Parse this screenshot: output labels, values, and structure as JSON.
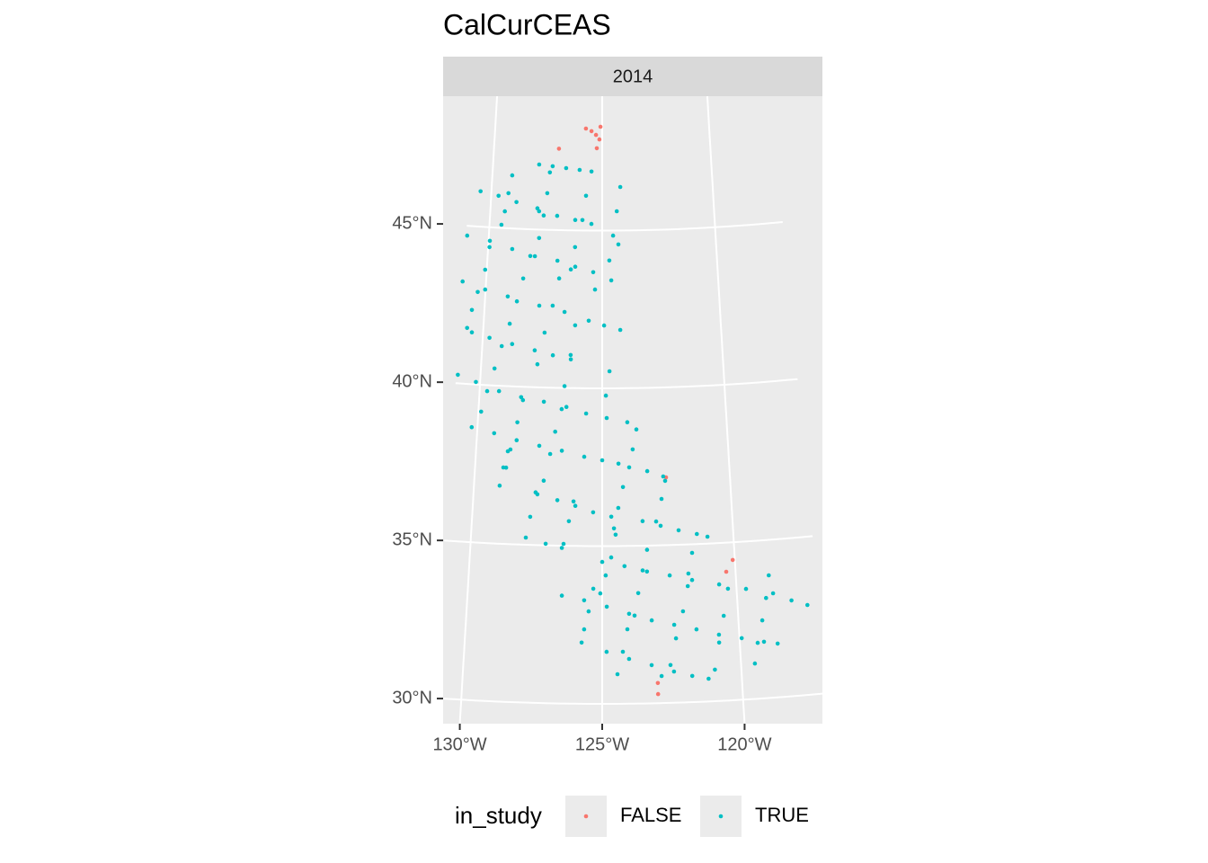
{
  "chart_data": {
    "type": "scatter",
    "title": "CalCurCEAS",
    "facet": "2014",
    "legend_title": "in_study",
    "xlim": [
      -131,
      -117
    ],
    "ylim": [
      29,
      50
    ],
    "xticks": [
      {
        "value": -130,
        "label": "130°W"
      },
      {
        "value": -125,
        "label": "125°W"
      },
      {
        "value": -120,
        "label": "120°W"
      }
    ],
    "yticks": [
      {
        "value": 30,
        "label": "30°N"
      },
      {
        "value": 35,
        "label": "35°N"
      },
      {
        "value": 40,
        "label": "40°N"
      },
      {
        "value": 45,
        "label": "45°N"
      }
    ],
    "grid": true,
    "series": [
      {
        "name": "FALSE",
        "color": "#F8766D",
        "x": [
          -125.76,
          -125.5,
          -125.29,
          -125.08,
          -125.13,
          -125.25,
          -127.0,
          -122.5,
          -120.35,
          -120.08,
          -123.01,
          -123.01
        ],
        "values": [
          48.23,
          48.15,
          48.03,
          48.29,
          47.89,
          47.61,
          47.58,
          37.15,
          34.08,
          34.44,
          30.64,
          30.29
        ]
      },
      {
        "name": "TRUE",
        "color": "#00BFC4",
        "x": [
          -127.89,
          -127.27,
          -126.65,
          -126.03,
          -125.49,
          -129.1,
          -129.23,
          -129.35,
          -129.47,
          -127.39,
          -127.48,
          -127.61,
          -127.78,
          -130.49,
          -129.67,
          -128.85,
          -127.9,
          -127.82,
          -127.01,
          -126.2,
          -125.48,
          -125.73,
          -125.88,
          -126.19,
          -126.36,
          -124.18,
          -124.35,
          -124.52,
          -130.95,
          -129.94,
          -128.94,
          -127.94,
          -126.95,
          -126.17,
          -125.39,
          -124.61,
          -129.94,
          -130.07,
          -130.33,
          -130.53,
          -130.68,
          -128.14,
          -128.41,
          -128.64,
          -128.9,
          -131.01,
          -130.02,
          -129.04,
          -127.68,
          -126.6,
          -126.86,
          -127.11,
          -127.42,
          -127.68,
          -124.29,
          -124.69,
          -125.31,
          -130.47,
          -129.72,
          -128.76,
          -127.81,
          -127.05,
          -126.3,
          -125.57,
          -124.92,
          -124.24,
          -129.19,
          -129.44,
          -129.69,
          -129.89,
          -126.14,
          -126.31,
          -126.54,
          -130.93,
          -130.17,
          -129.21,
          -128.3,
          -127.37,
          -126.45,
          -124.7,
          -124.85,
          -125.65,
          -124.82,
          -123.99,
          -128.22,
          -128.41,
          -128.64,
          -128.78,
          -126.64,
          -126.88,
          -127.06,
          -127.29,
          -130.23,
          -129.32,
          -128.41,
          -127.5,
          -126.6,
          -125.71,
          -125.0,
          -124.36,
          -128.74,
          -128.89,
          -129.0,
          -123.63,
          -123.79,
          -123.94,
          -123.23,
          -122.61,
          -122.54,
          -122.7,
          -122.93,
          -127.59,
          -127.77,
          -127.91,
          -127.15,
          -126.53,
          -126.11,
          -126.28,
          -126.47,
          -127.52,
          -126.74,
          -126.04,
          -125.35,
          -124.65,
          -124.19,
          -124.38,
          -124.55,
          -123.45,
          -122.76,
          -122.08,
          -121.39,
          -120.99,
          -121.6,
          -121.77,
          -124.49,
          -124.66,
          -124.87,
          -125.07,
          -125.0,
          -124.16,
          -123.32,
          -122.47,
          -121.64,
          -120.64,
          -119.65,
          -118.66,
          -123.3,
          -123.48,
          -123.66,
          -123.81,
          -126.5,
          -125.67,
          -124.83,
          -124.01,
          -123.18,
          -122.36,
          -121.55,
          -120.74,
          -119.92,
          -119.12,
          -118.63,
          -125.33,
          -125.5,
          -125.66,
          -125.75,
          -121.81,
          -122.02,
          -122.31,
          -122.54,
          -120.32,
          -120.53,
          -120.75,
          -120.95,
          -118.77,
          -118.93,
          -119.13,
          -119.35,
          -119.5,
          -124.84,
          -124.03,
          -123.22,
          -122.42,
          -121.77,
          -121.19,
          -124.08,
          -124.25,
          -124.45,
          -118.0,
          -117.43,
          -122.87
        ],
        "values": [
          47.06,
          47.02,
          46.97,
          46.92,
          46.87,
          46.68,
          46.11,
          45.53,
          45.1,
          46.82,
          46.16,
          45.45,
          44.73,
          46.12,
          46.01,
          45.84,
          45.67,
          45.58,
          45.45,
          45.33,
          45.21,
          46.1,
          45.33,
          44.47,
          43.76,
          46.38,
          45.61,
          44.84,
          44.69,
          44.57,
          44.35,
          44.15,
          44.03,
          43.85,
          43.68,
          43.42,
          44.37,
          43.65,
          42.93,
          42.35,
          41.77,
          44.15,
          43.43,
          42.7,
          41.98,
          43.23,
          43.02,
          42.84,
          42.59,
          42.41,
          43.47,
          42.6,
          41.74,
          40.73,
          44.56,
          44.05,
          43.13,
          41.64,
          41.5,
          41.34,
          41.17,
          41.03,
          40.91,
          42.14,
          41.99,
          41.85,
          41.26,
          40.54,
          39.81,
          39.15,
          41.99,
          41.05,
          40.06,
          40.27,
          40.08,
          39.83,
          39.67,
          39.55,
          39.4,
          40.54,
          39.77,
          39.2,
          39.06,
          38.92,
          39.58,
          38.87,
          38.0,
          37.42,
          39.33,
          38.61,
          37.9,
          37.05,
          38.64,
          38.49,
          38.3,
          38.15,
          38.01,
          37.83,
          37.72,
          37.61,
          37.94,
          37.42,
          36.84,
          38.69,
          38.06,
          37.49,
          37.36,
          37.18,
          37.04,
          36.47,
          35.76,
          36.67,
          35.89,
          35.23,
          35.05,
          34.93,
          36.41,
          35.78,
          35.06,
          36.61,
          36.44,
          36.27,
          36.07,
          35.93,
          36.87,
          36.21,
          35.56,
          35.78,
          35.62,
          35.46,
          35.32,
          35.22,
          34.73,
          34.08,
          35.36,
          34.64,
          34.07,
          33.5,
          34.5,
          34.36,
          34.18,
          34.04,
          33.87,
          33.69,
          33.5,
          33.3,
          34.87,
          34.22,
          33.5,
          32.79,
          33.42,
          33.28,
          33.08,
          32.85,
          32.63,
          32.47,
          32.3,
          32.1,
          31.95,
          31.79,
          31.7,
          33.65,
          32.93,
          32.36,
          31.94,
          33.68,
          32.89,
          32.04,
          31.2,
          33.54,
          32.69,
          31.85,
          31.0,
          33.88,
          33.17,
          32.47,
          31.77,
          31.12,
          31.65,
          31.42,
          31.21,
          30.99,
          30.83,
          30.72,
          32.36,
          31.65,
          30.94,
          33.03,
          32.84,
          30.86
        ]
      }
    ]
  }
}
